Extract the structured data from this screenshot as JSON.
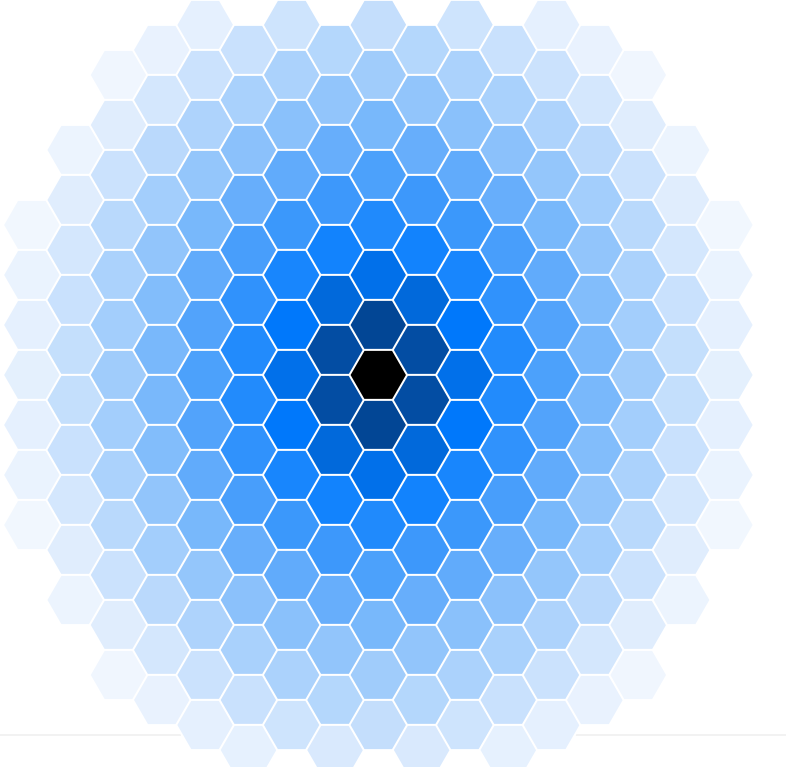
{
  "chart_data": {
    "type": "heatmap",
    "subtype": "hexbin",
    "title": "",
    "xlabel": "",
    "ylabel": "",
    "legend": "none",
    "grid": false,
    "colors": {
      "background": "#ffffff",
      "cell_border": "#ffffff",
      "baseline": "#e6e6e6",
      "scale": [
        {
          "stop": 0.0,
          "color": "#ffffff"
        },
        {
          "stop": 0.2,
          "color": "#dcebfd"
        },
        {
          "stop": 0.45,
          "color": "#8ec3fb"
        },
        {
          "stop": 0.65,
          "color": "#3a97fb"
        },
        {
          "stop": 0.78,
          "color": "#007afe"
        },
        {
          "stop": 0.88,
          "color": "#0355b4"
        },
        {
          "stop": 0.95,
          "color": "#012b5c"
        },
        {
          "stop": 1.0,
          "color": "#000000"
        }
      ]
    },
    "grid_cols": 18,
    "grid_rows": 15,
    "value_range": [
      0,
      1
    ],
    "density": {
      "peak_col": 8,
      "peak_row": 7,
      "falloff": "radial",
      "radius_cols": 9
    }
  }
}
